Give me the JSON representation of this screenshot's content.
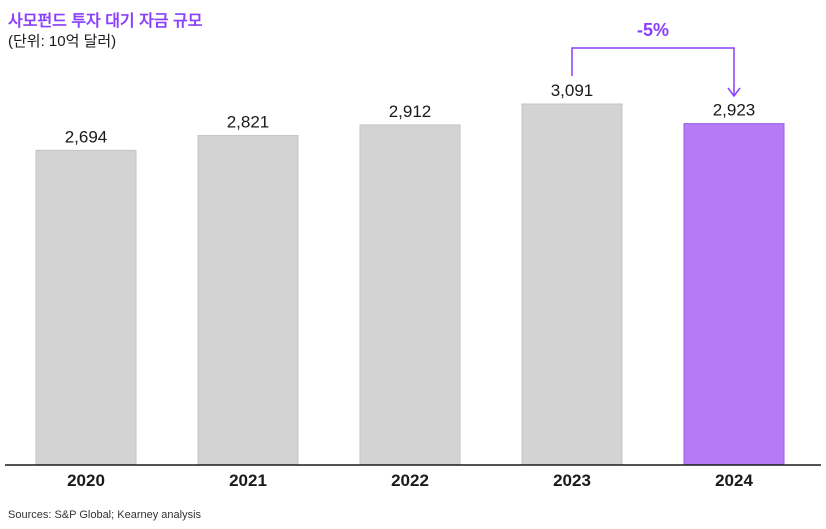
{
  "title": "사모펀드 투자 대기 자금 규모",
  "subtitle": "(단위: 10억 달러)",
  "source": "Sources: S&P Global; Kearney analysis",
  "chart_data": {
    "type": "bar",
    "categories": [
      "2020",
      "2021",
      "2022",
      "2023",
      "2024"
    ],
    "values": [
      2694,
      2821,
      2912,
      3091,
      2923
    ],
    "value_labels": [
      "2,694",
      "2,821",
      "2,912",
      "3,091",
      "2,923"
    ],
    "highlight_index": 4,
    "ylim": [
      0,
      3091
    ],
    "grid": false,
    "annotation": {
      "text": "-5%",
      "from_index": 3,
      "to_index": 4
    },
    "colors": {
      "bar": "#d3d3d3",
      "bar_stroke": "#c4c4c4",
      "highlight": "#b57af5",
      "highlight_stroke": "#9c5ae8",
      "accent": "#8a3ffc",
      "axis": "#1a1a1a"
    }
  }
}
